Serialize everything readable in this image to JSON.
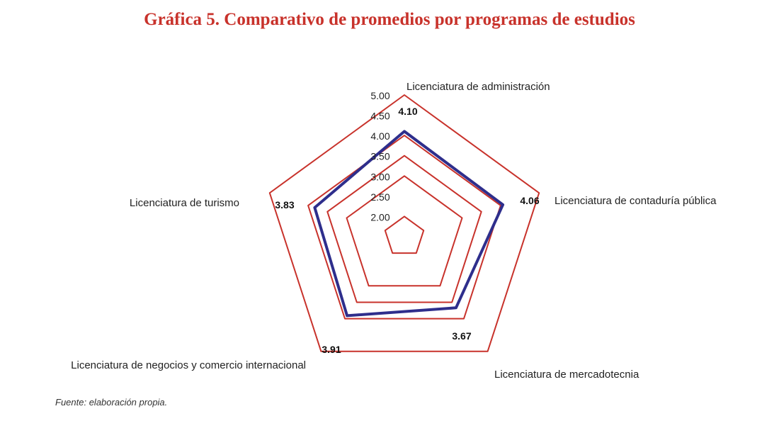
{
  "chart_data": {
    "type": "radar",
    "title": "Gráfica 5. Comparativo de promedios por programas de estudios",
    "categories": [
      "Licenciatura de administración",
      "Licenciatura de contaduría pública",
      "Licenciatura de mercadotecnia",
      "Licenciatura de negocios y comercio internacional",
      "Licenciatura de turismo"
    ],
    "series": [
      {
        "values": [
          4.1,
          4.06,
          3.67,
          3.91,
          3.83
        ]
      }
    ],
    "value_labels": [
      "4.10",
      "4.06",
      "3.67",
      "3.91",
      "3.83"
    ],
    "ticks": [
      2.0,
      2.5,
      3.0,
      3.5,
      4.0,
      4.5,
      5.0
    ],
    "tick_labels": [
      "2.00",
      "2.50",
      "3.00",
      "3.50",
      "4.00",
      "4.50",
      "5.00"
    ],
    "grid_levels": [
      2.0,
      3.0,
      3.5,
      4.0,
      5.0
    ],
    "range": [
      1.5,
      5.0
    ],
    "colors": {
      "grid": "#c8322b",
      "series": "#2e2e8c",
      "title": "#c8322b"
    }
  },
  "source": "Fuente: elaboración propia."
}
